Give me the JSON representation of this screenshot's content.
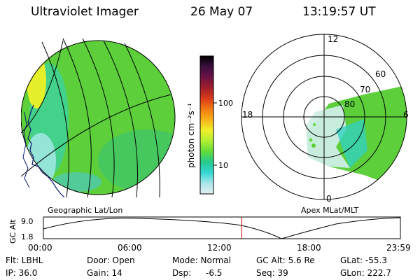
{
  "header": {
    "instrument": "Ultraviolet Imager",
    "date": "26 May 07",
    "time": "13:19:57 UT"
  },
  "left_panel": {
    "caption": "Geographic Lat/Lon"
  },
  "right_panel": {
    "caption": "Apex MLat/MLT",
    "mlt_labels": [
      "12",
      "18",
      "6",
      "0"
    ],
    "lat_labels": [
      "60",
      "70",
      "80"
    ]
  },
  "colorbar": {
    "unit_label": "photon cm⁻²s⁻¹",
    "tick_labels": [
      "100",
      "10"
    ],
    "colors": [
      "#000000",
      "#3b0f3e",
      "#6b1244",
      "#a01e2a",
      "#d93a1a",
      "#f37a13",
      "#f7b21a",
      "#eef02a",
      "#b2ee34",
      "#63db3b",
      "#25c98c",
      "#35d7d6",
      "#a9e6ea",
      "#e3eef0"
    ]
  },
  "timeline": {
    "ylabel": "GC Alt",
    "ytick_top": "9.0",
    "ytick_bottom": "1.8",
    "x_ticks": [
      "00:00",
      "06:00",
      "12:00",
      "18:00",
      "23:59"
    ],
    "current_marker_hour": 13.33
  },
  "status": {
    "filter": "Flt: LBHL",
    "ip": "IP: 36.0",
    "door": "Door: Open",
    "gain": "Gain: 14",
    "mode": "Mode: Normal",
    "dsp_label": "Dsp:",
    "dsp_value": "-6.5",
    "gc_alt": "GC Alt: 5.6 Re",
    "seq": "Seq: 39",
    "glat": "GLat:  -55.3",
    "glon": "GLon: 222.7"
  }
}
